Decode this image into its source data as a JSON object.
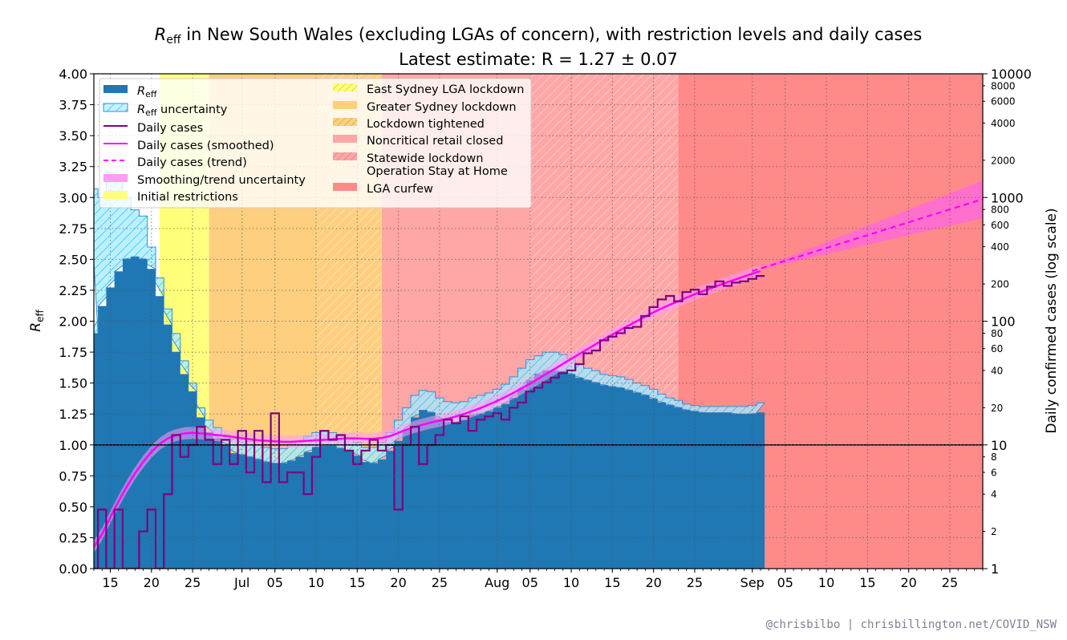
{
  "chart_data": {
    "type": "step-area-with-line",
    "title_prefix": "R",
    "title_sub": "eff",
    "title_suffix": " in New South Wales (excluding LGAs of concern), with restriction levels and daily cases",
    "subtitle": "Latest estimate: R = 1.27 ± 0.07",
    "ylabel_main": "R",
    "ylabel_main_sub": "eff",
    "ylabel_right": "Daily confirmed cases (log scale)",
    "credit": "@chrisbilbo | chrisbillington.net/COVID_NSW",
    "x_range": [
      "2021-06-13",
      "2021-09-29"
    ],
    "y_left_range": [
      0,
      4
    ],
    "y_right_range": [
      1,
      10000
    ],
    "y_right_scale": "log",
    "grid": "dotted",
    "legend_position": "top-left",
    "x_ticks": [
      {
        "date": "2021-06-15",
        "label": "15"
      },
      {
        "date": "2021-06-20",
        "label": "20"
      },
      {
        "date": "2021-06-25",
        "label": "25"
      },
      {
        "date": "2021-07-01",
        "label": "Jul"
      },
      {
        "date": "2021-07-05",
        "label": "05"
      },
      {
        "date": "2021-07-10",
        "label": "10"
      },
      {
        "date": "2021-07-15",
        "label": "15"
      },
      {
        "date": "2021-07-20",
        "label": "20"
      },
      {
        "date": "2021-07-25",
        "label": "25"
      },
      {
        "date": "2021-08-01",
        "label": "Aug"
      },
      {
        "date": "2021-08-05",
        "label": "05"
      },
      {
        "date": "2021-08-10",
        "label": "10"
      },
      {
        "date": "2021-08-15",
        "label": "15"
      },
      {
        "date": "2021-08-20",
        "label": "20"
      },
      {
        "date": "2021-08-25",
        "label": "25"
      },
      {
        "date": "2021-09-01",
        "label": "Sep"
      },
      {
        "date": "2021-09-05",
        "label": "05"
      },
      {
        "date": "2021-09-10",
        "label": "10"
      },
      {
        "date": "2021-09-15",
        "label": "15"
      },
      {
        "date": "2021-09-20",
        "label": "20"
      },
      {
        "date": "2021-09-25",
        "label": "25"
      }
    ],
    "y_left_ticks": [
      "0.00",
      "0.25",
      "0.50",
      "0.75",
      "1.00",
      "1.25",
      "1.50",
      "1.75",
      "2.00",
      "2.25",
      "2.50",
      "2.75",
      "3.00",
      "3.25",
      "3.50",
      "3.75",
      "4.00"
    ],
    "y_right_major_ticks": [
      {
        "value": 1,
        "label": "1"
      },
      {
        "value": 10,
        "label": "10"
      },
      {
        "value": 100,
        "label": "100"
      },
      {
        "value": 1000,
        "label": "1000"
      },
      {
        "value": 10000,
        "label": "10000"
      }
    ],
    "y_right_minor_ticks": [
      {
        "value": 2,
        "label": "2"
      },
      {
        "value": 4,
        "label": "4"
      },
      {
        "value": 6,
        "label": "6"
      },
      {
        "value": 8,
        "label": "8"
      },
      {
        "value": 20,
        "label": "20"
      },
      {
        "value": 40,
        "label": "40"
      },
      {
        "value": 60,
        "label": "60"
      },
      {
        "value": 80,
        "label": "80"
      },
      {
        "value": 200,
        "label": "200"
      },
      {
        "value": 400,
        "label": "400"
      },
      {
        "value": 600,
        "label": "600"
      },
      {
        "value": 800,
        "label": "800"
      },
      {
        "value": 2000,
        "label": "2000"
      },
      {
        "value": 4000,
        "label": "4000"
      },
      {
        "value": 6000,
        "label": "6000"
      },
      {
        "value": 8000,
        "label": "8000"
      }
    ],
    "restriction_periods": [
      {
        "name": "Initial restrictions",
        "start": "2021-06-21",
        "end": "2021-06-27",
        "color": "#ffff7a",
        "hatch": false
      },
      {
        "name": "East Sydney LGA lockdown",
        "start": "2021-06-25",
        "end": "2021-06-27",
        "color": "#ffff7a",
        "hatch": true
      },
      {
        "name": "Greater Sydney lockdown",
        "start": "2021-06-27",
        "end": "2021-07-10",
        "color": "#ffcf80",
        "hatch": false
      },
      {
        "name": "Lockdown tightened",
        "start": "2021-07-10",
        "end": "2021-07-18",
        "color": "#ffcf80",
        "hatch": true
      },
      {
        "name": "Noncritical retail closed",
        "start": "2021-07-18",
        "end": "2021-08-05",
        "color": "#ffa6a6",
        "hatch": false
      },
      {
        "name": "Statewide lockdown Operation Stay at Home",
        "start": "2021-08-05",
        "end": "2021-08-23",
        "color": "#ffa6a6",
        "hatch": true
      },
      {
        "name": "LGA curfew",
        "start": "2021-08-23",
        "end": "2021-09-29",
        "color": "#ff8a8a",
        "hatch": false
      }
    ],
    "series": [
      {
        "name": "Reff",
        "style": "step-fill",
        "color": "#1f77b4",
        "start_date": "2021-06-13",
        "values": [
          1.9,
          2.12,
          2.27,
          2.4,
          2.5,
          2.52,
          2.5,
          2.42,
          2.2,
          1.97,
          1.75,
          1.57,
          1.43,
          1.22,
          1.1,
          1.05,
          1.0,
          0.93,
          0.92,
          0.9,
          0.88,
          0.86,
          0.85,
          0.85,
          0.87,
          0.9,
          0.94,
          0.98,
          0.99,
          0.99,
          0.97,
          0.95,
          0.91,
          0.86,
          0.85,
          0.88,
          0.95,
          1.03,
          1.12,
          1.22,
          1.28,
          1.26,
          1.21,
          1.18,
          1.18,
          1.2,
          1.24,
          1.25,
          1.27,
          1.3,
          1.33,
          1.38,
          1.45,
          1.52,
          1.57,
          1.6,
          1.6,
          1.59,
          1.57,
          1.54,
          1.52,
          1.5,
          1.48,
          1.47,
          1.46,
          1.44,
          1.42,
          1.4,
          1.37,
          1.34,
          1.32,
          1.3,
          1.28,
          1.27,
          1.26,
          1.26,
          1.26,
          1.26,
          1.25,
          1.25,
          1.25,
          1.26
        ]
      },
      {
        "name": "Reff uncertainty",
        "style": "step-band-hatched",
        "color": "#00c8ff",
        "start_date": "2021-06-13",
        "lower": [
          1.9,
          2.12,
          2.27,
          2.4,
          2.5,
          2.52,
          2.5,
          2.42,
          2.2,
          1.97,
          1.75,
          1.57,
          1.43,
          1.22,
          1.1,
          1.05,
          1.0,
          0.93,
          0.92,
          0.9,
          0.88,
          0.86,
          0.85,
          0.85,
          0.87,
          0.9,
          0.94,
          0.98,
          0.99,
          0.99,
          0.97,
          0.95,
          0.91,
          0.86,
          0.85,
          0.88,
          0.95,
          1.03,
          1.12,
          1.22,
          1.28,
          1.26,
          1.21,
          1.18,
          1.18,
          1.2,
          1.24,
          1.25,
          1.27,
          1.3,
          1.33,
          1.38,
          1.45,
          1.52,
          1.57,
          1.6,
          1.6,
          1.59,
          1.57,
          1.54,
          1.52,
          1.5,
          1.48,
          1.47,
          1.46,
          1.44,
          1.42,
          1.4,
          1.37,
          1.34,
          1.32,
          1.3,
          1.28,
          1.27,
          1.26,
          1.26,
          1.26,
          1.26,
          1.25,
          1.25,
          1.25,
          1.26
        ],
        "upper": [
          3.07,
          3.0,
          3.2,
          3.15,
          3.0,
          2.9,
          2.85,
          2.6,
          2.35,
          2.1,
          1.9,
          1.68,
          1.5,
          1.3,
          1.2,
          1.14,
          1.08,
          1.05,
          1.06,
          1.03,
          1.0,
          0.98,
          0.97,
          0.97,
          1.0,
          1.03,
          1.07,
          1.1,
          1.11,
          1.1,
          1.08,
          1.06,
          1.02,
          0.98,
          0.98,
          1.02,
          1.1,
          1.2,
          1.3,
          1.4,
          1.44,
          1.43,
          1.38,
          1.35,
          1.34,
          1.35,
          1.38,
          1.4,
          1.42,
          1.45,
          1.49,
          1.55,
          1.62,
          1.69,
          1.72,
          1.75,
          1.75,
          1.73,
          1.7,
          1.65,
          1.62,
          1.6,
          1.57,
          1.56,
          1.55,
          1.53,
          1.5,
          1.48,
          1.45,
          1.41,
          1.38,
          1.36,
          1.33,
          1.32,
          1.31,
          1.31,
          1.31,
          1.31,
          1.31,
          1.31,
          1.32,
          1.34
        ]
      },
      {
        "name": "Daily cases",
        "style": "step-line",
        "color": "#800080",
        "axis": "right",
        "start_date": "2021-06-13",
        "values": [
          1,
          3,
          1,
          3,
          1,
          1,
          2,
          3,
          1,
          4,
          12,
          8,
          10,
          14,
          11,
          7,
          11,
          7,
          13,
          6,
          13,
          5,
          18,
          5,
          6,
          6,
          4,
          8,
          13,
          11,
          12,
          9,
          7,
          9,
          11,
          9,
          10,
          3,
          10,
          14,
          7,
          10,
          12,
          16,
          15,
          17,
          13,
          16,
          17,
          18,
          16,
          20,
          22,
          27,
          29,
          32,
          35,
          38,
          40,
          45,
          55,
          58,
          70,
          75,
          80,
          88,
          90,
          110,
          130,
          150,
          160,
          145,
          172,
          180,
          165,
          190,
          210,
          193,
          205,
          210,
          220,
          232
        ]
      },
      {
        "name": "Daily cases (smoothed)",
        "style": "line",
        "color": "#ff00ff",
        "axis": "right",
        "start_date": "2021-06-13",
        "values": [
          1.5,
          1.9,
          2.6,
          3.5,
          4.6,
          5.9,
          7.3,
          8.8,
          10.2,
          11.3,
          12.0,
          12.4,
          12.5,
          12.4,
          12.2,
          12.0,
          11.8,
          11.6,
          11.3,
          11.1,
          10.9,
          10.8,
          10.7,
          10.6,
          10.6,
          10.7,
          10.8,
          10.9,
          11.0,
          11.1,
          11.2,
          11.3,
          11.3,
          11.2,
          11.2,
          11.4,
          11.8,
          12.5,
          13.3,
          14.0,
          14.6,
          15.2,
          15.7,
          16.3,
          17.0,
          17.8,
          18.8,
          19.9,
          21.2,
          22.7,
          24.4,
          26.4,
          28.7,
          31.3,
          34.3,
          37.6,
          41.2,
          45.2,
          49.6,
          54.4,
          59.6,
          65.3,
          71.5,
          78.0,
          85.0,
          92.5,
          100.5,
          109,
          118,
          127,
          136,
          145,
          155,
          165,
          175,
          185,
          196,
          207,
          218,
          230,
          242,
          254
        ]
      },
      {
        "name": "Daily cases (trend)",
        "style": "dashed-line",
        "color": "#ff00ff",
        "axis": "right",
        "x_dates": [
          "2021-09-01",
          "2021-09-29"
        ],
        "values": [
          254,
          970
        ],
        "band_lower_end": 680,
        "band_upper_end": 1370
      }
    ],
    "reference_line": {
      "value": 1.0,
      "color": "#000000"
    },
    "legend_col1": [
      {
        "label": "R",
        "sub": "eff",
        "kind": "fill",
        "color": "#1f77b4"
      },
      {
        "label": "R",
        "sub": "eff",
        "suffix": " uncertainty",
        "kind": "hatch-box",
        "color": "#00c8ff"
      },
      {
        "label": "Daily cases",
        "kind": "line",
        "color": "#800080"
      },
      {
        "label": "Daily cases (smoothed)",
        "kind": "line",
        "color": "#ff00ff"
      },
      {
        "label": "Daily cases (trend)",
        "kind": "dash",
        "color": "#ff00ff"
      },
      {
        "label": "Smoothing/trend uncertainty",
        "kind": "fill",
        "color": "#ff9cf5"
      },
      {
        "label": "Initial restrictions",
        "kind": "fill",
        "color": "#ffff7a"
      }
    ],
    "legend_col2": [
      {
        "label": "East Sydney LGA lockdown",
        "kind": "hatch-fill",
        "color": "#ffff7a"
      },
      {
        "label": "Greater Sydney lockdown",
        "kind": "fill",
        "color": "#ffcf80"
      },
      {
        "label": "Lockdown tightened",
        "kind": "hatch-fill",
        "color": "#ffcf80"
      },
      {
        "label": "Noncritical retail closed",
        "kind": "fill",
        "color": "#ffa6a6"
      },
      {
        "label": "Statewide lockdown",
        "label2": "Operation Stay at Home",
        "kind": "hatch-fill",
        "color": "#ffa6a6"
      },
      {
        "label": "LGA curfew",
        "kind": "fill",
        "color": "#ff8a8a"
      }
    ]
  }
}
